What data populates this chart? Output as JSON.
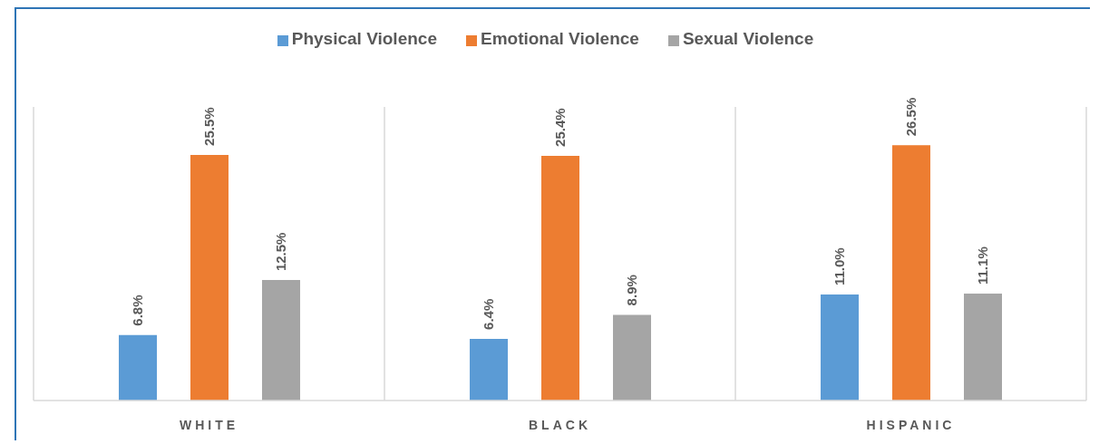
{
  "chart_data": {
    "type": "bar",
    "categories": [
      "WHITE",
      "BLACK",
      "HISPANIC"
    ],
    "series": [
      {
        "name": "Physical Violence",
        "color": "#5b9bd5",
        "values": [
          6.8,
          6.4,
          11.0
        ],
        "value_labels": [
          "6.8%",
          "6.4%",
          "11.0%"
        ]
      },
      {
        "name": "Emotional Violence",
        "color": "#ed7d31",
        "values": [
          25.5,
          25.4,
          26.5
        ],
        "value_labels": [
          "25.5%",
          "25.4%",
          "26.5%"
        ]
      },
      {
        "name": "Sexual Violence",
        "color": "#a5a5a5",
        "values": [
          12.5,
          8.9,
          11.1
        ],
        "value_labels": [
          "12.5%",
          "8.9%",
          "11.1%"
        ]
      }
    ],
    "grid": "x",
    "legend": "top"
  }
}
